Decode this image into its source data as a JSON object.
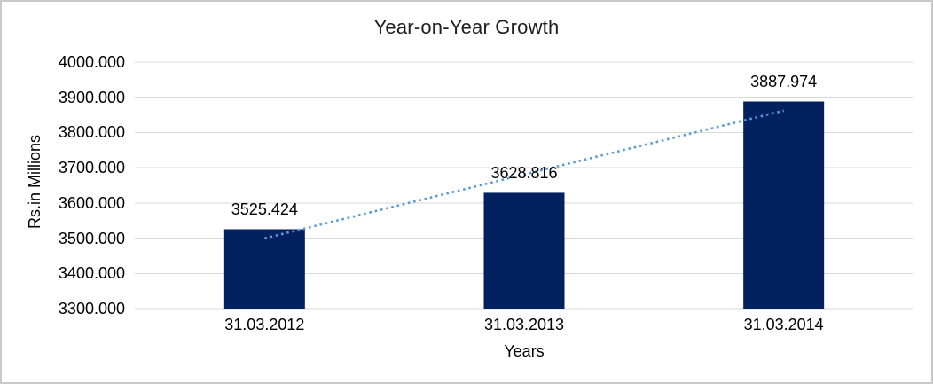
{
  "chart_data": {
    "type": "bar",
    "title": "Year-on-Year Growth",
    "categories": [
      "31.03.2012",
      "31.03.2013",
      "31.03.2014"
    ],
    "values": [
      3525.424,
      3628.816,
      3887.974
    ],
    "data_labels": [
      "3525.424",
      "3628.816",
      "3887.974"
    ],
    "xlabel": "Years",
    "ylabel": "Rs.in Millions",
    "ylim": [
      3300,
      4000
    ],
    "ytick_step": 100,
    "yticks": [
      "4000.000",
      "3900.000",
      "3800.000",
      "3700.000",
      "3600.000",
      "3500.000",
      "3400.000",
      "3300.000"
    ],
    "grid": true,
    "legend": false,
    "bar_color": "#02215E",
    "gridline_color": "#D9D9D9",
    "axis_line_color": "#D9D9D9",
    "trendline": {
      "type": "linear",
      "style": "dotted",
      "color": "#5B9BD5",
      "start_value": 3499.463,
      "end_value": 3862.013
    }
  }
}
